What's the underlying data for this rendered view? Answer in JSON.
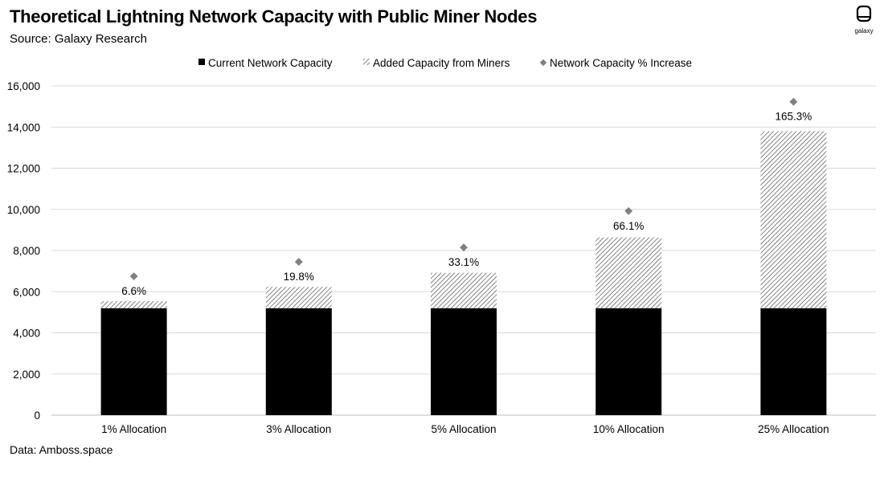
{
  "header": {
    "title": "Theoretical Lightning Network Capacity with Public Miner Nodes",
    "subtitle": "Source: Galaxy Research",
    "logo_text": "galaxy"
  },
  "footer": {
    "data_source": "Data: Amboss.space"
  },
  "colors": {
    "current": "#000000",
    "added_hatch": "#444444",
    "marker": "#808080",
    "grid": "#d9d9d9"
  },
  "chart_data": {
    "type": "bar",
    "stacked": true,
    "title": "Theoretical Lightning Network Capacity with Public Miner Nodes",
    "categories": [
      "1% Allocation",
      "3% Allocation",
      "5% Allocation",
      "10% Allocation",
      "25% Allocation"
    ],
    "series": [
      {
        "name": "Current Network Capacity",
        "values": [
          5200,
          5200,
          5200,
          5200,
          5200
        ]
      },
      {
        "name": "Added Capacity from Miners",
        "values": [
          340,
          1030,
          1720,
          3440,
          8600
        ]
      }
    ],
    "marker_series": {
      "name": "Network Capacity % Increase",
      "values": [
        6750,
        7450,
        8150,
        9920,
        15230
      ],
      "labels": [
        "6.6%",
        "19.8%",
        "33.1%",
        "66.1%",
        "165.3%"
      ]
    },
    "ylim": [
      0,
      16000
    ],
    "yticks": [
      0,
      2000,
      4000,
      6000,
      8000,
      10000,
      12000,
      14000,
      16000
    ],
    "ytick_labels": [
      "0",
      "2,000",
      "4,000",
      "6,000",
      "8,000",
      "10,000",
      "12,000",
      "14,000",
      "16,000"
    ],
    "legend": [
      "Current Network Capacity",
      "Added Capacity from Miners",
      "Network Capacity % Increase"
    ],
    "legend_position": "top-center",
    "grid": true
  }
}
